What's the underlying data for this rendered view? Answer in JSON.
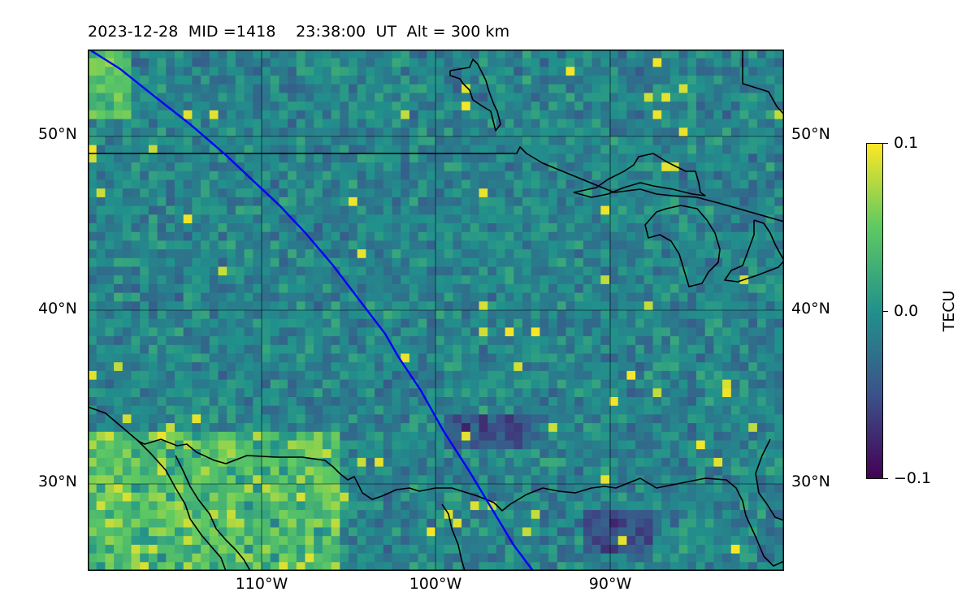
{
  "title": {
    "date": "2023-12-28",
    "mid": "MID =1418",
    "time": "23:38:00  UT",
    "alt": "Alt = 300 km"
  },
  "lat_labels": [
    "50°N",
    "40°N",
    "30°N"
  ],
  "lon_labels": [
    "110°W",
    "100°W",
    "90°W"
  ],
  "colorbar": {
    "title": "TECU",
    "ticks": [
      "0.1",
      "0.0",
      "−0.1"
    ],
    "range": [
      -0.1,
      0.1
    ],
    "colormap": [
      "#440154",
      "#3b528b",
      "#21918c",
      "#5ec962",
      "#fde725"
    ]
  },
  "map": {
    "extent": {
      "lon": [
        -120,
        -80
      ],
      "lat": [
        25,
        55
      ]
    },
    "satellite_track_color": "#0000ff",
    "coastline_color": "#000000"
  }
}
